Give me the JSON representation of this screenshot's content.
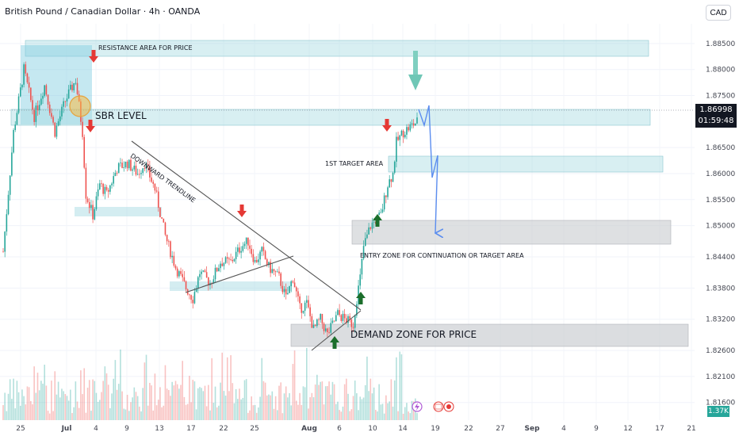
{
  "header": {
    "title": "British Pound / Canadian Dollar · 4h · OANDA",
    "currency_button": "CAD"
  },
  "price_tag": {
    "price": "1.86998",
    "countdown": "01:59:48"
  },
  "volume_tag": "1.37K",
  "annotations": {
    "resistance": "RESISTANCE AREA FOR PRICE",
    "sbr": "SBR LEVEL",
    "trendline": "DOWNWARD TRENDLINE",
    "first_target": "1ST TARGET AREA",
    "entry_zone": "ENTRY ZONE FOR CONTINUATION OR TARGET AREA",
    "demand_zone": "DEMAND ZONE FOR PRICE"
  },
  "colors": {
    "up": "#26a69a",
    "down": "#ef5350",
    "zone_blue": "#a9dbe3",
    "zone_gray": "#c8cbcf",
    "arrow_red": "#e53935",
    "arrow_green": "#1b6e2b",
    "projection": "#5b8def"
  },
  "chart_data": {
    "type": "candlestick",
    "symbol": "British Pound / Canadian Dollar",
    "timeframe": "4h",
    "source": "OANDA",
    "ylim": [
      1.8126,
      1.8888
    ],
    "y_ticks": [
      "1.88500",
      "1.88000",
      "1.87500",
      "1.86500",
      "1.86000",
      "1.85500",
      "1.85000",
      "1.84400",
      "1.83800",
      "1.83200",
      "1.82600",
      "1.82100",
      "1.81600"
    ],
    "x_ticks": [
      "25",
      "Jul",
      "4",
      "9",
      "13",
      "17",
      "22",
      "25",
      "Aug",
      "6",
      "10",
      "14",
      "19",
      "22",
      "27",
      "Sep",
      "4",
      "9",
      "12",
      "17",
      "21"
    ],
    "last_price": 1.86998,
    "close_path": [
      [
        0,
        1.845
      ],
      [
        6,
        1.868
      ],
      [
        12,
        1.88
      ],
      [
        18,
        1.871
      ],
      [
        24,
        1.877
      ],
      [
        30,
        1.868
      ],
      [
        36,
        1.874
      ],
      [
        42,
        1.878
      ],
      [
        46,
        1.868
      ],
      [
        48,
        1.856
      ],
      [
        52,
        1.852
      ],
      [
        56,
        1.858
      ],
      [
        60,
        1.856
      ],
      [
        66,
        1.861
      ],
      [
        72,
        1.862
      ],
      [
        78,
        1.86
      ],
      [
        82,
        1.862
      ],
      [
        88,
        1.857
      ],
      [
        94,
        1.848
      ],
      [
        100,
        1.842
      ],
      [
        106,
        1.838
      ],
      [
        110,
        1.836
      ],
      [
        114,
        1.841
      ],
      [
        120,
        1.839
      ],
      [
        126,
        1.843
      ],
      [
        132,
        1.843
      ],
      [
        138,
        1.846
      ],
      [
        142,
        1.847
      ],
      [
        146,
        1.843
      ],
      [
        150,
        1.845
      ],
      [
        154,
        1.842
      ],
      [
        160,
        1.84
      ],
      [
        164,
        1.836
      ],
      [
        168,
        1.84
      ],
      [
        172,
        1.834
      ],
      [
        176,
        1.835
      ],
      [
        180,
        1.83
      ],
      [
        184,
        1.832
      ],
      [
        188,
        1.829
      ],
      [
        194,
        1.833
      ],
      [
        198,
        1.832
      ],
      [
        203,
        1.831
      ],
      [
        205,
        1.836
      ],
      [
        207,
        1.84
      ],
      [
        209,
        1.846
      ],
      [
        213,
        1.85
      ],
      [
        219,
        1.852
      ],
      [
        223,
        1.858
      ],
      [
        226,
        1.86
      ],
      [
        228,
        1.866
      ],
      [
        232,
        1.868
      ],
      [
        236,
        1.869
      ],
      [
        240,
        1.87
      ]
    ],
    "volume_bars": 240,
    "zones": [
      {
        "label": "RESISTANCE AREA FOR PRICE",
        "type": "resistance",
        "y_range": [
          1.8812,
          1.883
        ]
      },
      {
        "label": "SBR LEVEL",
        "type": "support/resistance",
        "y_range": [
          1.8665,
          1.8685
        ]
      },
      {
        "label": "1ST TARGET AREA",
        "type": "target",
        "y_range": [
          1.8582,
          1.86
        ]
      },
      {
        "label": "ENTRY ZONE FOR CONTINUATION OR TARGET AREA",
        "type": "entry",
        "y_range": [
          1.8449,
          1.8479
        ]
      },
      {
        "label": "DEMAND ZONE FOR PRICE",
        "type": "demand",
        "y_range": [
          1.8256,
          1.828
        ]
      }
    ],
    "projection_path": [
      1.87,
      1.868,
      1.8705,
      1.8585,
      1.861,
      1.8468
    ]
  }
}
